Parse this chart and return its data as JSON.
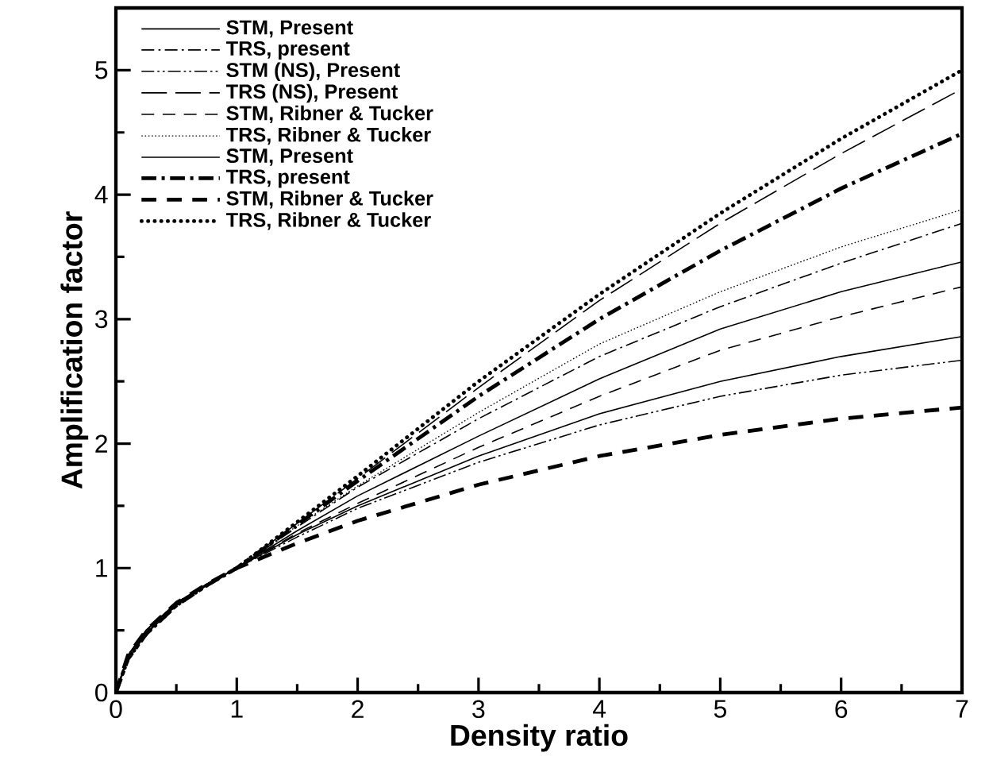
{
  "chart_data": {
    "type": "line",
    "xlabel": "Density ratio",
    "ylabel": "Amplification factor",
    "x": [
      0,
      0.1,
      0.25,
      0.5,
      0.75,
      1,
      1.5,
      2,
      3,
      4,
      5,
      6,
      7
    ],
    "xlim": [
      0,
      7
    ],
    "ylim": [
      0,
      5.5
    ],
    "xticks": [
      0,
      1,
      2,
      3,
      4,
      5,
      6,
      7
    ],
    "yticks": [
      0,
      1,
      2,
      3,
      4,
      5
    ],
    "grid": false,
    "legend": "top left",
    "series": [
      {
        "name": "STM, Present",
        "color": "#000000",
        "line_style": "solid",
        "values": [
          0,
          0.3,
          0.5,
          0.72,
          0.87,
          1,
          1.3,
          1.58,
          2.06,
          2.52,
          2.92,
          3.22,
          3.46
        ]
      },
      {
        "name": "TRS, present",
        "color": "#000000",
        "line_style": "dashdot",
        "values": [
          0,
          0.28,
          0.48,
          0.7,
          0.86,
          1,
          1.33,
          1.65,
          2.2,
          2.7,
          3.1,
          3.45,
          3.77
        ]
      },
      {
        "name": "STM (NS), Present",
        "color": "#000000",
        "line_style": "dashdotdot",
        "values": [
          0,
          0.3,
          0.5,
          0.72,
          0.87,
          1,
          1.25,
          1.48,
          1.85,
          2.15,
          2.38,
          2.55,
          2.67
        ]
      },
      {
        "name": "TRS (NS), Present",
        "color": "#000000",
        "line_style": "longdash",
        "values": [
          0,
          0.27,
          0.47,
          0.7,
          0.86,
          1,
          1.36,
          1.72,
          2.45,
          3.15,
          3.77,
          4.33,
          4.85
        ]
      },
      {
        "name": "STM, Ribner & Tucker",
        "color": "#000000",
        "line_style": "dashed",
        "values": [
          0,
          0.3,
          0.5,
          0.72,
          0.87,
          1,
          1.28,
          1.52,
          1.97,
          2.38,
          2.75,
          3.02,
          3.26
        ]
      },
      {
        "name": "TRS, Ribner & Tucker",
        "color": "#000000",
        "line_style": "dotted",
        "values": [
          0,
          0.28,
          0.48,
          0.7,
          0.86,
          1,
          1.34,
          1.66,
          2.25,
          2.8,
          3.22,
          3.58,
          3.88
        ]
      },
      {
        "name": "STM, Present",
        "color": "#000000",
        "line_style": "solid",
        "values": [
          0,
          0.3,
          0.5,
          0.72,
          0.87,
          1,
          1.27,
          1.5,
          1.9,
          2.24,
          2.5,
          2.7,
          2.86
        ]
      },
      {
        "name": "TRS, present",
        "color": "#000000",
        "line_style": "thick dashdot",
        "values": [
          0,
          0.27,
          0.47,
          0.7,
          0.86,
          1,
          1.35,
          1.7,
          2.38,
          3.0,
          3.55,
          4.05,
          4.49
        ]
      },
      {
        "name": "STM, Ribner & Tucker",
        "color": "#000000",
        "line_style": "thick dashed",
        "values": [
          0,
          0.3,
          0.5,
          0.72,
          0.87,
          1,
          1.2,
          1.38,
          1.67,
          1.9,
          2.07,
          2.2,
          2.29
        ]
      },
      {
        "name": "TRS, Ribner & Tucker",
        "color": "#000000",
        "line_style": "thick dotted",
        "values": [
          0,
          0.27,
          0.47,
          0.7,
          0.86,
          1,
          1.37,
          1.74,
          2.5,
          3.2,
          3.85,
          4.45,
          5.0
        ]
      }
    ]
  }
}
